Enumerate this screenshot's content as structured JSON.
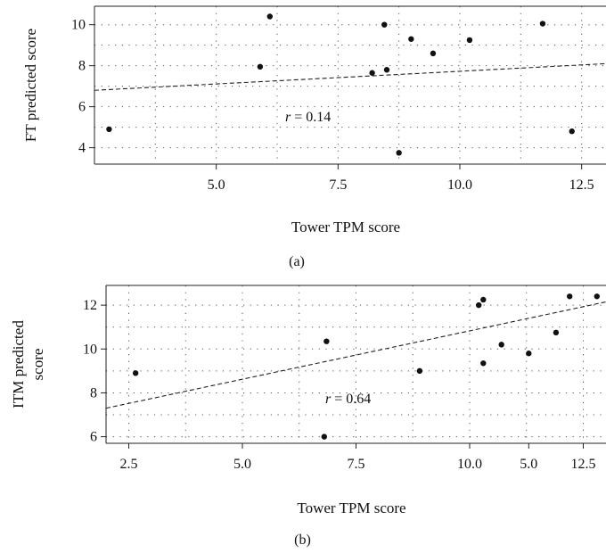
{
  "chart_data": [
    {
      "type": "scatter",
      "panel_label": "(a)",
      "xlabel": "Tower TPM score",
      "ylabel": "FT predicted score",
      "xlim": [
        2.5,
        13.0
      ],
      "ylim": [
        3.2,
        10.9
      ],
      "x_ticks": [
        5.0,
        7.5,
        10.0,
        12.5
      ],
      "x_tick_labels": [
        "5.0",
        "7.5",
        "10.0",
        "12.5"
      ],
      "y_ticks": [
        4,
        6,
        8,
        10
      ],
      "y_tick_labels": [
        "4",
        "6",
        "8",
        "10"
      ],
      "grid": true,
      "annotation": "r = 0.14",
      "points": [
        {
          "x": 2.8,
          "y": 4.9
        },
        {
          "x": 5.9,
          "y": 7.95
        },
        {
          "x": 6.1,
          "y": 10.4
        },
        {
          "x": 8.2,
          "y": 7.65
        },
        {
          "x": 8.45,
          "y": 10.0
        },
        {
          "x": 8.5,
          "y": 7.8
        },
        {
          "x": 8.75,
          "y": 3.75
        },
        {
          "x": 9.0,
          "y": 9.3
        },
        {
          "x": 9.45,
          "y": 8.6
        },
        {
          "x": 10.2,
          "y": 9.25
        },
        {
          "x": 11.7,
          "y": 10.05
        },
        {
          "x": 12.3,
          "y": 4.8
        }
      ],
      "trend_line": {
        "x": [
          2.5,
          13.0
        ],
        "y": [
          6.8,
          8.1
        ]
      }
    },
    {
      "type": "scatter",
      "panel_label": "(b)",
      "xlabel": "Tower TPM score",
      "ylabel_lines": [
        "ITM predicted",
        "score"
      ],
      "xlim": [
        2.0,
        13.0
      ],
      "ylim": [
        5.7,
        12.9
      ],
      "x_ticks": [
        2.5,
        5.0,
        7.5,
        10.0,
        12.5
      ],
      "x_tick_labels": [
        "2.5",
        "5.0",
        "7.5",
        "10.0",
        "12.5"
      ],
      "y_ticks": [
        6,
        8,
        10,
        12
      ],
      "y_tick_labels": [
        "6",
        "8",
        "10",
        "12"
      ],
      "extra_tick_labels": [
        {
          "x": 11.3,
          "label": "5.0"
        }
      ],
      "grid": true,
      "annotation": "r = 0.64",
      "points": [
        {
          "x": 2.65,
          "y": 8.9
        },
        {
          "x": 6.8,
          "y": 6.0
        },
        {
          "x": 6.85,
          "y": 10.35
        },
        {
          "x": 8.9,
          "y": 9.0
        },
        {
          "x": 10.2,
          "y": 12.0
        },
        {
          "x": 10.3,
          "y": 12.25
        },
        {
          "x": 10.3,
          "y": 9.35
        },
        {
          "x": 10.7,
          "y": 10.2
        },
        {
          "x": 11.3,
          "y": 9.8
        },
        {
          "x": 11.9,
          "y": 10.75
        },
        {
          "x": 12.2,
          "y": 12.4
        },
        {
          "x": 12.8,
          "y": 12.4
        }
      ],
      "trend_line": {
        "x": [
          2.0,
          13.0
        ],
        "y": [
          7.3,
          12.15
        ]
      }
    }
  ]
}
